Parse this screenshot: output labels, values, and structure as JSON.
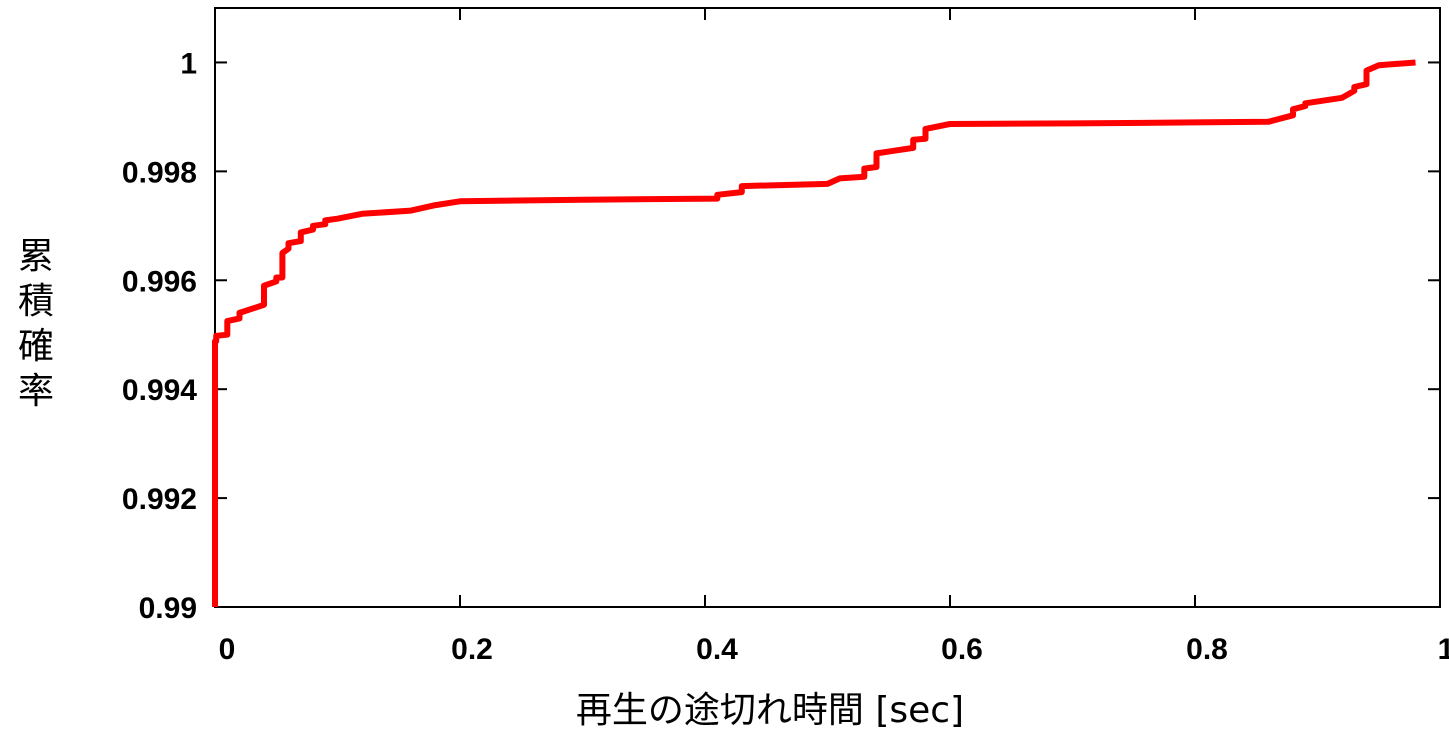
{
  "chart_data": {
    "type": "line",
    "title": "",
    "xlabel": "再生の途切れ時間 [sec]",
    "ylabel": "累積確率",
    "xlim": [
      0,
      1
    ],
    "ylim": [
      0.99,
      1.001
    ],
    "x_ticks": [
      0,
      0.2,
      0.4,
      0.6,
      0.8,
      1
    ],
    "x_tick_labels": [
      "0",
      "0.2",
      "0.4",
      "0.6",
      "0.8",
      "1"
    ],
    "y_ticks": [
      0.99,
      0.992,
      0.994,
      0.996,
      0.998,
      1
    ],
    "y_tick_labels": [
      "0.99",
      "0.992",
      "0.994",
      "0.996",
      "0.998",
      "1"
    ],
    "grid": false,
    "legend": "none",
    "series": [
      {
        "color": "#ff0000",
        "x": [
          0,
          0,
          0.001,
          0.001,
          0.01,
          0.01,
          0.02,
          0.02,
          0.04,
          0.04,
          0.05,
          0.05,
          0.055,
          0.055,
          0.06,
          0.06,
          0.07,
          0.07,
          0.08,
          0.08,
          0.09,
          0.09,
          0.1,
          0.12,
          0.16,
          0.18,
          0.2,
          0.3,
          0.41,
          0.41,
          0.43,
          0.43,
          0.5,
          0.51,
          0.53,
          0.53,
          0.54,
          0.54,
          0.57,
          0.57,
          0.58,
          0.58,
          0.6,
          0.7,
          0.8,
          0.86,
          0.87,
          0.88,
          0.88,
          0.89,
          0.89,
          0.92,
          0.93,
          0.93,
          0.94,
          0.94,
          0.95,
          0.98
        ],
        "y": [
          0.99,
          0.99488,
          0.99488,
          0.99498,
          0.995,
          0.99525,
          0.9953,
          0.9954,
          0.99555,
          0.9959,
          0.99598,
          0.99605,
          0.99605,
          0.9965,
          0.99658,
          0.99668,
          0.99672,
          0.99688,
          0.99693,
          0.997,
          0.99703,
          0.9971,
          0.99713,
          0.99722,
          0.99728,
          0.99738,
          0.99745,
          0.99748,
          0.9975,
          0.99757,
          0.99762,
          0.99773,
          0.99777,
          0.99787,
          0.9979,
          0.99805,
          0.99808,
          0.99833,
          0.99843,
          0.99858,
          0.9986,
          0.99878,
          0.99887,
          0.99888,
          0.9989,
          0.99891,
          0.99897,
          0.99903,
          0.99914,
          0.9992,
          0.99925,
          0.99935,
          0.99948,
          0.99955,
          0.9996,
          0.99985,
          0.99995,
          1.0
        ]
      }
    ]
  }
}
